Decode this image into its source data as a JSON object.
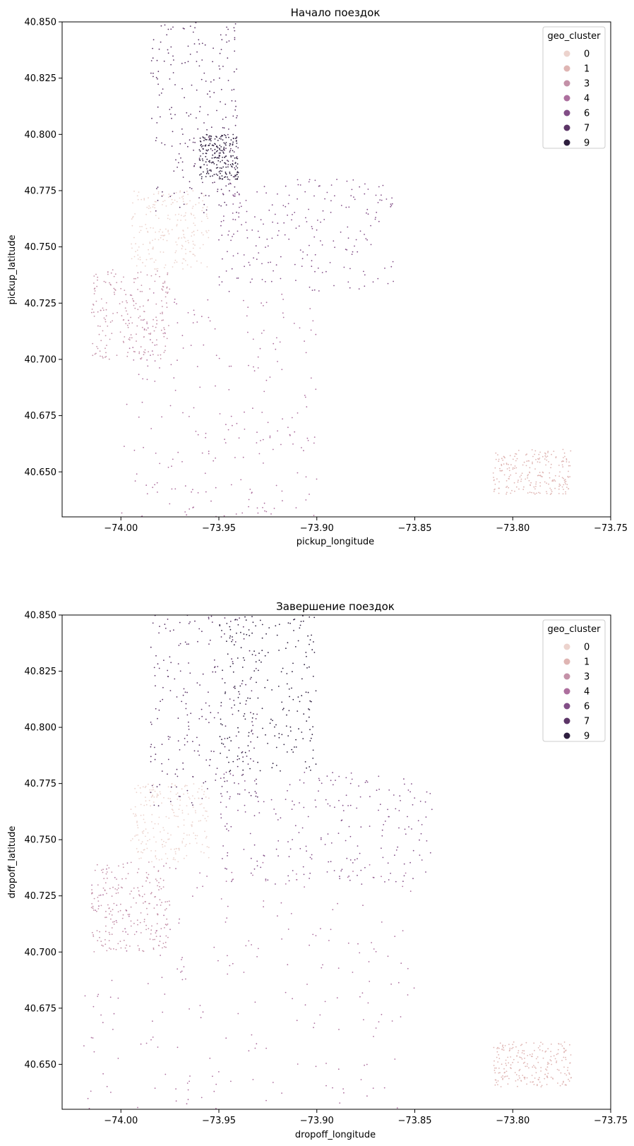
{
  "colors": {
    "cluster_0": "#ecd3cd",
    "cluster_1": "#dfb5b3",
    "cluster_3": "#c491a8",
    "cluster_4": "#ad6f9e",
    "cluster_6": "#824e87",
    "cluster_7": "#5c3567",
    "cluster_9": "#2d1e3e"
  },
  "chart_data": [
    {
      "type": "scatter",
      "title": "Начало поездок",
      "xlabel": "pickup_longitude",
      "ylabel": "pickup_latitude",
      "xlim": [
        -74.03,
        -73.75
      ],
      "ylim": [
        40.63,
        40.85
      ],
      "xticks": [
        "−74.00",
        "−73.95",
        "−73.90",
        "−73.85",
        "−73.80",
        "−73.75"
      ],
      "xtick_values": [
        -74.0,
        -73.95,
        -73.9,
        -73.85,
        -73.8,
        -73.75
      ],
      "yticks": [
        "40.650",
        "40.675",
        "40.700",
        "40.725",
        "40.750",
        "40.775",
        "40.800",
        "40.825",
        "40.850"
      ],
      "ytick_values": [
        40.65,
        40.675,
        40.7,
        40.725,
        40.75,
        40.775,
        40.8,
        40.825,
        40.85
      ],
      "grid": false,
      "legend": {
        "title": "geo_cluster",
        "placement": "top-right",
        "entries": [
          "0",
          "1",
          "3",
          "4",
          "6",
          "7",
          "9"
        ]
      },
      "clusters": [
        {
          "label": "0",
          "lon": [
            -73.995,
            -73.955
          ],
          "lat": [
            40.74,
            40.775
          ]
        },
        {
          "label": "1",
          "lon": [
            -73.81,
            -73.77
          ],
          "lat": [
            40.64,
            40.66
          ]
        },
        {
          "label": "3",
          "lon": [
            -74.015,
            -73.975
          ],
          "lat": [
            40.7,
            40.74
          ]
        },
        {
          "label": "4",
          "lon": [
            -74.0,
            -73.9
          ],
          "lat": [
            40.63,
            40.73
          ]
        },
        {
          "label": "6",
          "lon": [
            -73.95,
            -73.86
          ],
          "lat": [
            40.73,
            40.78
          ]
        },
        {
          "label": "7",
          "lon": [
            -73.985,
            -73.94
          ],
          "lat": [
            40.765,
            40.85
          ]
        },
        {
          "label": "9",
          "lon": [
            -73.96,
            -73.94
          ],
          "lat": [
            40.78,
            40.8
          ]
        }
      ]
    },
    {
      "type": "scatter",
      "title": "Завершение поездок",
      "xlabel": "dropoff_longitude",
      "ylabel": "dropoff_latitude",
      "xlim": [
        -74.03,
        -73.75
      ],
      "ylim": [
        40.63,
        40.85
      ],
      "xticks": [
        "−74.00",
        "−73.95",
        "−73.90",
        "−73.85",
        "−73.80",
        "−73.75"
      ],
      "xtick_values": [
        -74.0,
        -73.95,
        -73.9,
        -73.85,
        -73.8,
        -73.75
      ],
      "yticks": [
        "40.650",
        "40.675",
        "40.700",
        "40.725",
        "40.750",
        "40.775",
        "40.800",
        "40.825",
        "40.850"
      ],
      "ytick_values": [
        40.65,
        40.675,
        40.7,
        40.725,
        40.75,
        40.775,
        40.8,
        40.825,
        40.85
      ],
      "grid": false,
      "legend": {
        "title": "geo_cluster",
        "placement": "top-right",
        "entries": [
          "0",
          "1",
          "3",
          "4",
          "6",
          "7",
          "9"
        ]
      },
      "clusters": [
        {
          "label": "0",
          "lon": [
            -73.995,
            -73.955
          ],
          "lat": [
            40.74,
            40.775
          ]
        },
        {
          "label": "1",
          "lon": [
            -73.81,
            -73.77
          ],
          "lat": [
            40.64,
            40.66
          ]
        },
        {
          "label": "3",
          "lon": [
            -74.015,
            -73.975
          ],
          "lat": [
            40.7,
            40.74
          ]
        },
        {
          "label": "4",
          "lon": [
            -74.02,
            -73.85
          ],
          "lat": [
            40.63,
            40.74
          ]
        },
        {
          "label": "6",
          "lon": [
            -73.95,
            -73.84
          ],
          "lat": [
            40.73,
            40.78
          ]
        },
        {
          "label": "7",
          "lon": [
            -73.985,
            -73.93
          ],
          "lat": [
            40.765,
            40.85
          ]
        },
        {
          "label": "9",
          "lon": [
            -73.95,
            -73.9
          ],
          "lat": [
            40.78,
            40.85
          ]
        }
      ]
    }
  ]
}
